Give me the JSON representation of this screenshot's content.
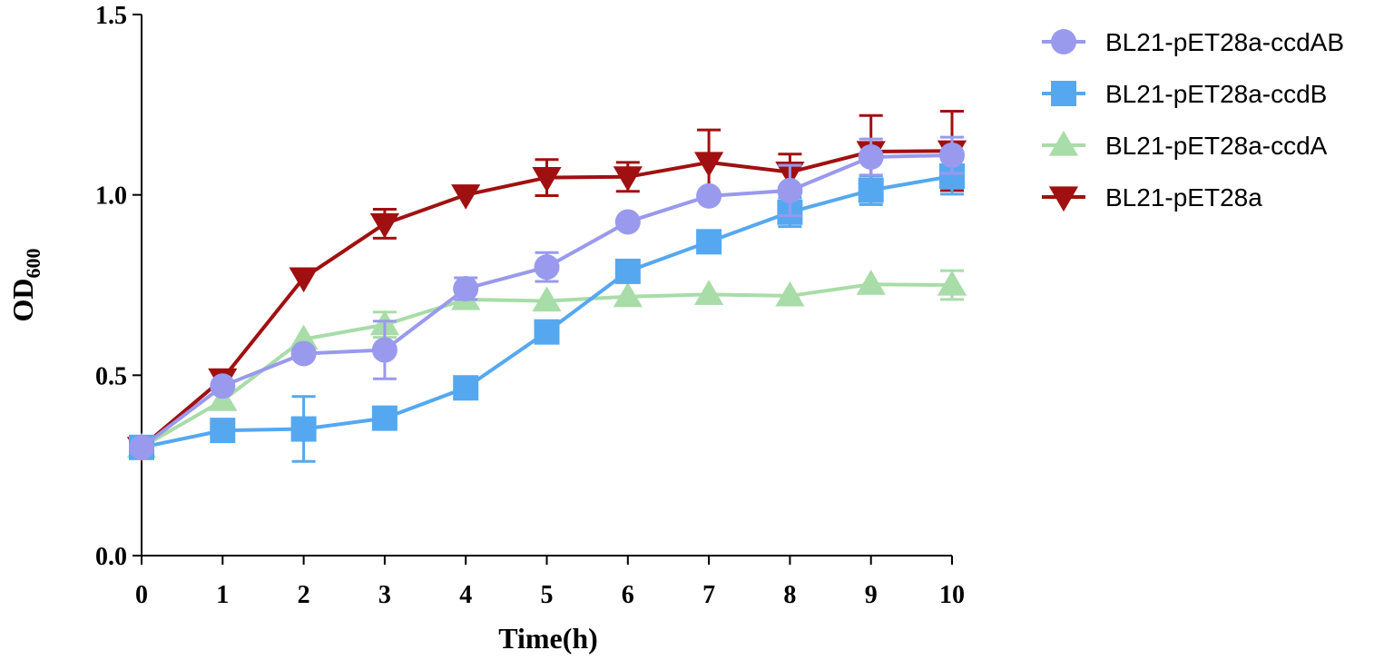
{
  "chart_data": {
    "type": "line",
    "title": "",
    "xlabel": "Time(h)",
    "ylabel_main": "OD",
    "ylabel_sub": "600",
    "xlim": [
      0,
      10
    ],
    "ylim": [
      0,
      1.5
    ],
    "x_ticks": [
      0,
      1,
      2,
      3,
      4,
      5,
      6,
      7,
      8,
      9,
      10
    ],
    "y_ticks": [
      0.0,
      0.5,
      1.0,
      1.5
    ],
    "y_tick_labels": [
      "0.0",
      "0.5",
      "1.0",
      "1.5"
    ],
    "x": [
      0,
      1,
      2,
      3,
      4,
      5,
      6,
      7,
      8,
      9,
      10
    ],
    "legend_position": "right",
    "series": [
      {
        "name": "BL21-pET28a-ccdAB",
        "marker": "circle",
        "color": "#9999EE",
        "values": [
          0.3,
          0.47,
          0.56,
          0.57,
          0.74,
          0.8,
          0.925,
          0.997,
          1.012,
          1.105,
          1.11
        ],
        "errors": [
          0.0,
          0.0,
          0.0,
          0.08,
          0.03,
          0.04,
          0.0,
          0.0,
          0.07,
          0.05,
          0.05
        ]
      },
      {
        "name": "BL21-pET28a-ccdB",
        "marker": "square",
        "color": "#55A8F0",
        "values": [
          0.3,
          0.347,
          0.351,
          0.381,
          0.465,
          0.62,
          0.788,
          0.87,
          0.952,
          1.013,
          1.052
        ],
        "errors": [
          0.0,
          0.0,
          0.09,
          0.0,
          0.0,
          0.0,
          0.0,
          0.0,
          0.04,
          0.04,
          0.05
        ]
      },
      {
        "name": "BL21-pET28a-ccdA",
        "marker": "triangle-up",
        "color": "#A8DCA8",
        "values": [
          0.3,
          0.43,
          0.6,
          0.64,
          0.71,
          0.706,
          0.718,
          0.724,
          0.72,
          0.752,
          0.75
        ],
        "errors": [
          0.0,
          0.0,
          0.0,
          0.035,
          0.0,
          0.0,
          0.0,
          0.0,
          0.0,
          0.0,
          0.04
        ]
      },
      {
        "name": "BL21-pET28a",
        "marker": "triangle-down",
        "color": "#A01010",
        "values": [
          0.3,
          0.49,
          0.77,
          0.92,
          1.0,
          1.048,
          1.05,
          1.09,
          1.063,
          1.12,
          1.122
        ],
        "errors": [
          0.0,
          0.0,
          0.0,
          0.04,
          0.0,
          0.05,
          0.04,
          0.09,
          0.05,
          0.1,
          0.11
        ]
      }
    ]
  }
}
